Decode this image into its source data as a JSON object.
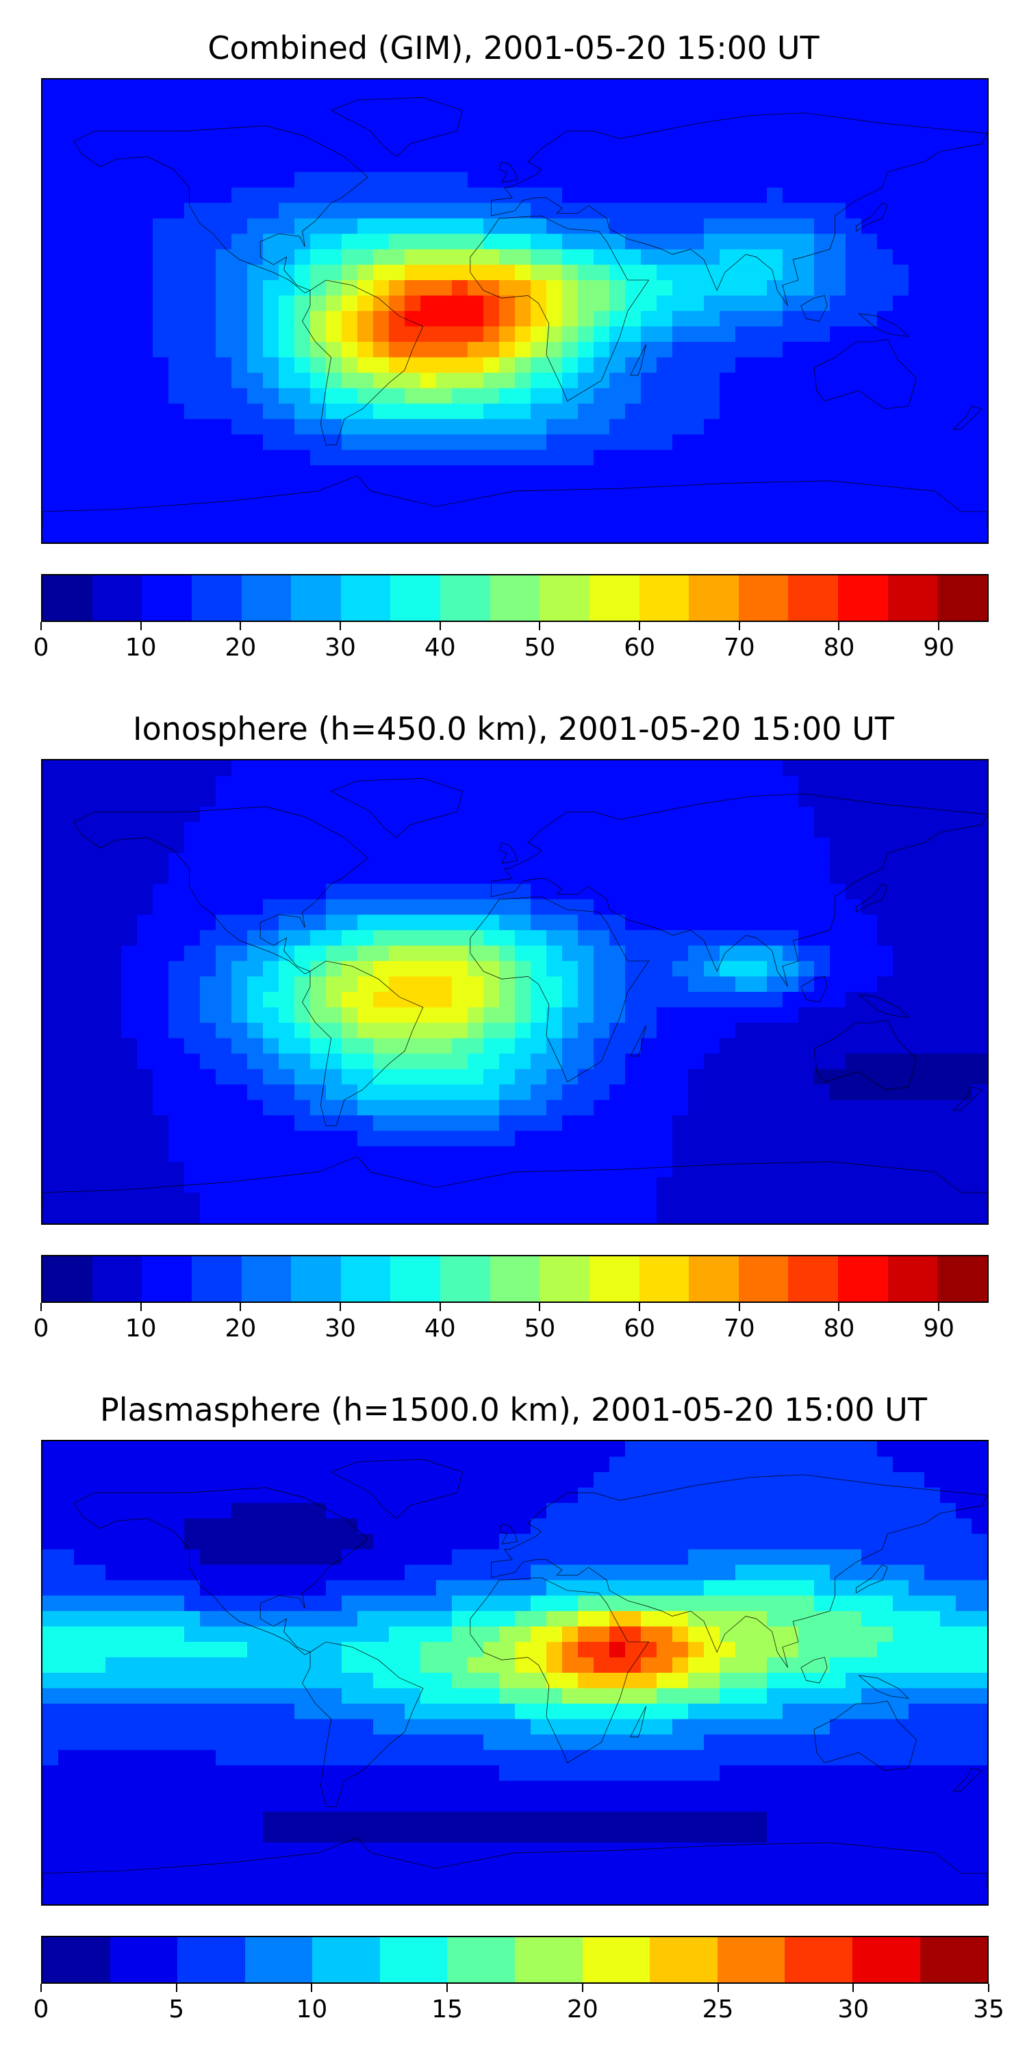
{
  "panels": [
    {
      "title": "Combined (GIM), 2001-05-20 15:00 UT",
      "colorbar": {
        "min": 0,
        "max": 95,
        "step": 5,
        "ticks": [
          "0",
          "10",
          "20",
          "30",
          "40",
          "50",
          "60",
          "70",
          "80",
          "90"
        ],
        "tick_values": [
          0,
          10,
          20,
          30,
          40,
          50,
          60,
          70,
          80,
          90
        ]
      },
      "background_level": 12,
      "blobs": [
        {
          "lon": -35,
          "lat": -8,
          "sx": 42,
          "sy": 20,
          "value": 60
        },
        {
          "lon": -10,
          "lat": 8,
          "sx": 30,
          "sy": 14,
          "value": 18
        },
        {
          "lon": -60,
          "lat": 28,
          "sx": 45,
          "sy": 14,
          "value": 12
        },
        {
          "lon": 60,
          "lat": 10,
          "sx": 45,
          "sy": 14,
          "value": 18
        },
        {
          "lon": 100,
          "lat": 25,
          "sx": 20,
          "sy": 12,
          "value": 10
        },
        {
          "lon": -15,
          "lat": -40,
          "sx": 60,
          "sy": 12,
          "value": 8
        },
        {
          "lon": -100,
          "lat": -10,
          "sx": 15,
          "sy": 30,
          "value": -3
        }
      ]
    },
    {
      "title": "Ionosphere  (h=450.0 km), 2001-05-20 15:00 UT",
      "colorbar": {
        "min": 0,
        "max": 95,
        "step": 5,
        "ticks": [
          "0",
          "10",
          "20",
          "30",
          "40",
          "50",
          "60",
          "70",
          "80",
          "90"
        ],
        "tick_values": [
          0,
          10,
          20,
          30,
          40,
          50,
          60,
          70,
          80,
          90
        ]
      },
      "background_level": 10,
      "blobs": [
        {
          "lon": -40,
          "lat": -3,
          "sx": 45,
          "sy": 20,
          "value": 50
        },
        {
          "lon": -20,
          "lat": 18,
          "sx": 40,
          "sy": 12,
          "value": 10
        },
        {
          "lon": 90,
          "lat": 10,
          "sx": 18,
          "sy": 8,
          "value": 22
        },
        {
          "lon": -30,
          "lat": -40,
          "sx": 35,
          "sy": 12,
          "value": 15
        },
        {
          "lon": 140,
          "lat": -35,
          "sx": 40,
          "sy": 15,
          "value": -6
        },
        {
          "lon": -170,
          "lat": 5,
          "sx": 20,
          "sy": 30,
          "value": -4
        }
      ]
    },
    {
      "title": "Plasmasphere (h=1500.0 km), 2001-05-20 15:00 UT",
      "colorbar": {
        "min": 0,
        "max": 35,
        "step": 2.5,
        "ticks": [
          "0",
          "5",
          "10",
          "15",
          "20",
          "25",
          "30",
          "35"
        ],
        "tick_values": [
          0,
          5,
          10,
          15,
          20,
          25,
          30,
          35
        ]
      },
      "background_level": 5,
      "blobs": [
        {
          "lon": 30,
          "lat": 5,
          "sx": 70,
          "sy": 18,
          "value": 15
        },
        {
          "lon": 40,
          "lat": 10,
          "sx": 20,
          "sy": 12,
          "value": 10
        },
        {
          "lon": -150,
          "lat": 10,
          "sx": 50,
          "sy": 12,
          "value": 8
        },
        {
          "lon": 110,
          "lat": 25,
          "sx": 40,
          "sy": 15,
          "value": 6
        },
        {
          "lon": -90,
          "lat": 50,
          "sx": 40,
          "sy": 15,
          "value": -4
        },
        {
          "lon": 0,
          "lat": -60,
          "sx": 180,
          "sy": 12,
          "value": -3
        }
      ]
    }
  ],
  "colormap": "jet",
  "map": {
    "projection": "plate-carree",
    "lon_range": [
      -180,
      180
    ],
    "lat_range": [
      -90,
      90
    ],
    "coastlines": true
  }
}
